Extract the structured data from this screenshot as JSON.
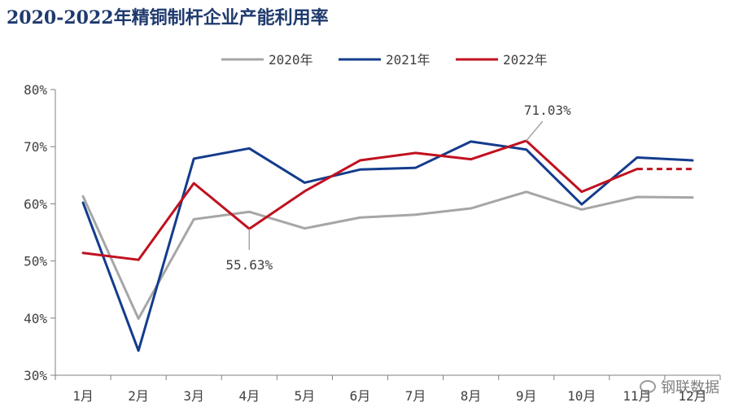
{
  "chart_data": {
    "type": "line",
    "title": "2020-2022年精铜制杆企业产能利用率",
    "categories": [
      "1月",
      "2月",
      "3月",
      "4月",
      "5月",
      "6月",
      "7月",
      "8月",
      "9月",
      "10月",
      "11月",
      "12月"
    ],
    "ylim": [
      30,
      80
    ],
    "yticks": [
      30,
      40,
      50,
      60,
      70,
      80
    ],
    "ytick_labels": [
      "30%",
      "40%",
      "50%",
      "60%",
      "70%",
      "80%"
    ],
    "grid": false,
    "legend_position": "top-center",
    "series": [
      {
        "name": "2020年",
        "color": "#a6a6a6",
        "values": [
          61.3,
          39.9,
          57.3,
          58.6,
          55.7,
          57.6,
          58.1,
          59.2,
          62.1,
          59.0,
          61.2,
          61.1
        ]
      },
      {
        "name": "2021年",
        "color": "#143c8c",
        "values": [
          60.2,
          34.3,
          67.9,
          69.7,
          63.7,
          66.0,
          66.3,
          70.9,
          69.5,
          59.9,
          68.1,
          67.6
        ]
      },
      {
        "name": "2022年",
        "color": "#c0111f",
        "values": [
          51.4,
          50.2,
          63.6,
          55.63,
          62.2,
          67.6,
          68.9,
          67.8,
          71.03,
          62.1,
          66.1,
          66.1
        ],
        "dashed_from_index": 10
      }
    ],
    "annotations": [
      {
        "text": "55.63%",
        "series": "2022年",
        "category": "4月",
        "placement": "below"
      },
      {
        "text": "71.03%",
        "series": "2022年",
        "category": "9月",
        "placement": "above"
      }
    ]
  },
  "watermark": {
    "text": "钢联数据"
  }
}
